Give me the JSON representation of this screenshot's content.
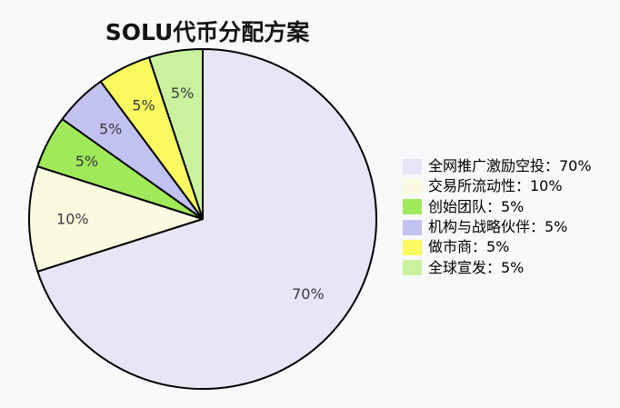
{
  "page": {
    "background_color": "#f8f9fb"
  },
  "chart_data": {
    "type": "pie",
    "title": "SOLU代币分配方案",
    "startangle": 90,
    "counterclock": false,
    "legend_position": "right",
    "grid": false,
    "edge_color": "#000000",
    "edge_width": 2,
    "pct_label_color": "#3a3a3e",
    "pct_distance": 0.75,
    "total": 100,
    "slices": [
      {
        "label": "全网推广激励空投",
        "value": 70,
        "pct_label": "70%",
        "legend_label": "全网推广激励空投：70%",
        "color": "#e6e6f6"
      },
      {
        "label": "交易所流动性",
        "value": 10,
        "pct_label": "10%",
        "legend_label": "交易所流动性：10%",
        "color": "#fafae0"
      },
      {
        "label": "创始团队",
        "value": 5,
        "pct_label": "5%",
        "legend_label": "创始团队：5%",
        "color": "#9fe95a"
      },
      {
        "label": "机构与战略伙伴",
        "value": 5,
        "pct_label": "5%",
        "legend_label": "机构与战略伙伴：5%",
        "color": "#c1c2f0"
      },
      {
        "label": "做市商",
        "value": 5,
        "pct_label": "5%",
        "legend_label": "做市商：5%",
        "color": "#f9f960"
      },
      {
        "label": "全球宣发",
        "value": 5,
        "pct_label": "5%",
        "legend_label": "全球宣发：5%",
        "color": "#caf29e"
      }
    ]
  }
}
